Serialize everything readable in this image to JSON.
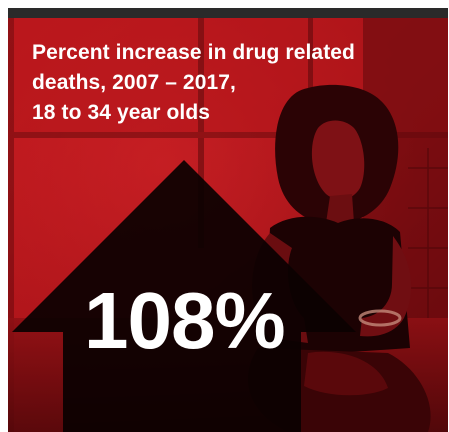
{
  "headline": {
    "line1": "Percent increase in drug related",
    "line2": "deaths, 2007 – 2017,",
    "line3": "18 to 34 year olds"
  },
  "stat": {
    "value": "108%"
  },
  "colors": {
    "background_red": "#b3151b",
    "dark_red": "#5e0a0c",
    "arrow": "#0b0101",
    "text": "#ffffff"
  },
  "icons": {
    "arrow": "up-arrow-icon",
    "photo": "woman-sitting-photo"
  }
}
